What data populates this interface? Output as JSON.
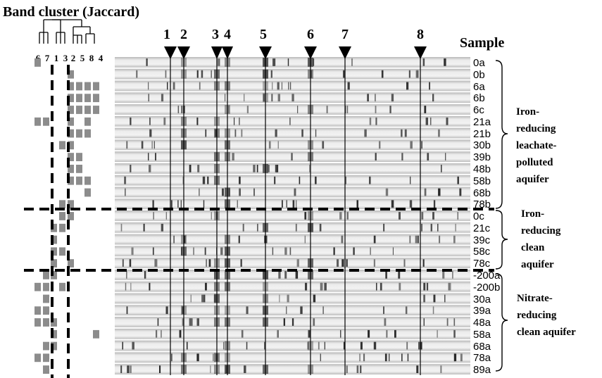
{
  "title": "Band cluster (Jaccard)",
  "sample_header": "Sample",
  "cluster_labels": [
    "6",
    "7",
    "1",
    "3",
    "2",
    "5",
    "8",
    "4"
  ],
  "band_markers": [
    "1",
    "2",
    "3",
    "4",
    "5",
    "6",
    "7",
    "8"
  ],
  "lanes": [
    "0a",
    "0b",
    "6a",
    "6b",
    "6c",
    "21a",
    "21b",
    "30b",
    "39b",
    "48b",
    "58b",
    "68b",
    "78b",
    "0c",
    "21c",
    "39c",
    "58c",
    "78c",
    "-200a",
    "-200b",
    "30a",
    "39a",
    "48a",
    "58a",
    "68a",
    "78a",
    "89a"
  ],
  "groups": [
    {
      "lines": [
        "Iron-",
        "reducing",
        "leachate-",
        "polluted",
        "aquifer"
      ]
    },
    {
      "lines": [
        "Iron-",
        "reducing",
        "clean",
        "aquifer"
      ]
    },
    {
      "lines": [
        "Nitrate-",
        "reducing",
        "clean aquifer"
      ]
    }
  ]
}
